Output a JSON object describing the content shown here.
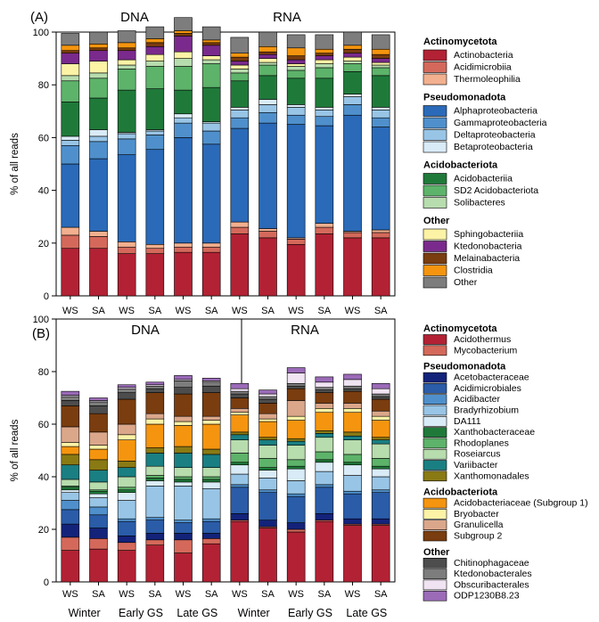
{
  "chart_data": [
    {
      "type": "bar",
      "stacked": true,
      "panel_label": "(A)",
      "ylabel": "% of all reads",
      "ylim": [
        0,
        100
      ],
      "yticks": [
        0,
        20,
        40,
        60,
        80,
        100
      ],
      "grid": false,
      "categories": [
        "WS",
        "SA",
        "WS",
        "SA",
        "WS",
        "SA",
        "WS",
        "SA",
        "WS",
        "SA",
        "WS",
        "SA"
      ],
      "group_labels": [
        "DNA",
        "RNA"
      ],
      "legend": [
        {
          "heading": "Actinomycetota",
          "items": [
            {
              "name": "Actinobacteria",
              "color": "#b22234"
            },
            {
              "name": "Acidimicrobiia",
              "color": "#d4695b"
            },
            {
              "name": "Thermoleophilia",
              "color": "#f2b08f"
            }
          ]
        },
        {
          "heading": "Pseudomonadota",
          "items": [
            {
              "name": "Alphaproteobacteria",
              "color": "#2a6ab8"
            },
            {
              "name": "Gammaproteobacteria",
              "color": "#4f90cc"
            },
            {
              "name": "Deltaproteobacteria",
              "color": "#98c5e6"
            },
            {
              "name": "Betaproteobacteria",
              "color": "#d9ebf6"
            }
          ]
        },
        {
          "heading": "Acidobacteriota",
          "items": [
            {
              "name": "Acidobacteriia",
              "color": "#1f7a3a"
            },
            {
              "name": "SD2 Acidobacteriota",
              "color": "#5db36a"
            },
            {
              "name": "Solibacteres",
              "color": "#b7dcad"
            }
          ]
        },
        {
          "heading": "Other",
          "items": [
            {
              "name": "Sphingobacteriia",
              "color": "#fdf3a6"
            },
            {
              "name": "Ktedonobacteria",
              "color": "#7a2a8c"
            },
            {
              "name": "Melainabacteria",
              "color": "#7a3d0f"
            },
            {
              "name": "Clostridia",
              "color": "#f5950f"
            },
            {
              "name": "Other",
              "color": "#7d7d7d"
            }
          ]
        }
      ],
      "series": [
        {
          "name": "Actinobacteria",
          "values": [
            18,
            18,
            16,
            16,
            16.5,
            16.5,
            23.5,
            22,
            19.5,
            23.5,
            22,
            22
          ]
        },
        {
          "name": "Acidimicrobiia",
          "values": [
            5,
            4.5,
            2.5,
            2,
            2,
            2,
            2.5,
            2.5,
            2,
            2.5,
            2,
            2
          ]
        },
        {
          "name": "Thermoleophilia",
          "values": [
            3,
            2,
            2,
            1.5,
            1.5,
            1.5,
            2,
            1,
            0.5,
            1.5,
            0.5,
            1
          ]
        },
        {
          "name": "Alphaproteobacteria",
          "values": [
            24,
            27.5,
            33,
            36,
            40,
            37.5,
            35.5,
            40,
            43,
            37,
            44,
            39
          ]
        },
        {
          "name": "Gammaproteobacteria",
          "values": [
            7,
            6.5,
            6,
            5.5,
            5.5,
            5,
            4,
            4,
            3.5,
            3.5,
            4,
            3.5
          ]
        },
        {
          "name": "Deltaproteobacteria",
          "values": [
            2,
            2,
            2,
            1.5,
            2,
            3,
            3,
            3,
            3,
            2.5,
            3,
            3
          ]
        },
        {
          "name": "Betaproteobacteria",
          "values": [
            1.5,
            2.5,
            0.5,
            0.5,
            1.5,
            0.5,
            1,
            2,
            1,
            1,
            1,
            1
          ]
        },
        {
          "name": "Acidobacteriia",
          "values": [
            13,
            12,
            16,
            15.5,
            9,
            13,
            10,
            9,
            10,
            11,
            8.5,
            12
          ]
        },
        {
          "name": "SD2 Acidobacteriota",
          "values": [
            8,
            7.5,
            8,
            8.5,
            9,
            9,
            3,
            4,
            3,
            4,
            3,
            3
          ]
        },
        {
          "name": "Solibacteres",
          "values": [
            2,
            2,
            1.5,
            2,
            3,
            1.5,
            1.5,
            1,
            1.5,
            1.5,
            1,
            1
          ]
        },
        {
          "name": "Sphingobacteriia",
          "values": [
            4.5,
            4.5,
            2,
            2.5,
            2.5,
            1.5,
            1.5,
            1.5,
            1,
            1.5,
            1.5,
            1
          ]
        },
        {
          "name": "Ktedonobacteria",
          "values": [
            4,
            4,
            3.5,
            3,
            6,
            4,
            1.5,
            1.5,
            1.5,
            1.5,
            1.5,
            1.5
          ]
        },
        {
          "name": "Melainabacteria",
          "values": [
            1,
            1,
            1,
            1.5,
            1,
            1,
            1.5,
            1,
            1.5,
            1,
            1.5,
            1.5
          ]
        },
        {
          "name": "Clostridia",
          "values": [
            2,
            1.5,
            2,
            1.5,
            1,
            1,
            1.5,
            2,
            3,
            1.5,
            1.5,
            2
          ]
        },
        {
          "name": "Other",
          "values": [
            4.5,
            4.5,
            4.5,
            4.5,
            5,
            5,
            6,
            5.5,
            5,
            5.5,
            5,
            5.5
          ]
        }
      ]
    },
    {
      "type": "bar",
      "stacked": true,
      "panel_label": "(B)",
      "ylabel": "% of all reads",
      "ylim": [
        0,
        100
      ],
      "yticks": [
        0,
        20,
        40,
        60,
        80,
        100
      ],
      "grid": false,
      "categories": [
        "WS",
        "SA",
        "WS",
        "SA",
        "WS",
        "SA",
        "WS",
        "SA",
        "WS",
        "SA",
        "WS",
        "SA"
      ],
      "group_labels": [
        "DNA",
        "RNA"
      ],
      "season_labels": [
        "Winter",
        "Early GS",
        "Late GS",
        "Winter",
        "Early GS",
        "Late GS"
      ],
      "legend": [
        {
          "heading": "Actinomycetota",
          "items": [
            {
              "name": "Acidothermus",
              "color": "#b22234"
            },
            {
              "name": "Mycobacterium",
              "color": "#d4695b"
            }
          ]
        },
        {
          "heading": "Pseudomonadota",
          "items": [
            {
              "name": "Acetobacteraceae",
              "color": "#13237a"
            },
            {
              "name": "Acidimicrobiales",
              "color": "#2a5ca8"
            },
            {
              "name": "Acidibacter",
              "color": "#4f90cc"
            },
            {
              "name": "Bradyrhizobium",
              "color": "#98c5e6"
            },
            {
              "name": "DA111",
              "color": "#d9ebf6"
            },
            {
              "name": "Xanthobacteraceae",
              "color": "#1f7a3a"
            },
            {
              "name": "Rhodoplanes",
              "color": "#5db36a"
            },
            {
              "name": "Roseiarcus",
              "color": "#b7dcad"
            },
            {
              "name": "Variibacter",
              "color": "#1a7f82"
            },
            {
              "name": "Xanthomonadales",
              "color": "#8a7a14"
            }
          ]
        },
        {
          "heading": "Acidobacteriota",
          "items": [
            {
              "name": "Acidobacteriaceae (Subgroup 1)",
              "color": "#f5950f"
            },
            {
              "name": "Bryobacter",
              "color": "#fdf3a6"
            },
            {
              "name": "Granulicella",
              "color": "#dba78b"
            },
            {
              "name": "Subgroup 2",
              "color": "#7a3d0f"
            }
          ]
        },
        {
          "heading": "Other",
          "items": [
            {
              "name": "Chitinophagaceae",
              "color": "#4d4d4d"
            },
            {
              "name": "Ktedonobacterales",
              "color": "#7d7d7d"
            },
            {
              "name": "Obscuribacterales",
              "color": "#f0e4f2"
            },
            {
              "name": "ODP1230B8.23",
              "color": "#9b6bb8"
            }
          ]
        }
      ],
      "series": [
        {
          "name": "Acidothermus",
          "values": [
            12,
            12.5,
            12,
            14,
            11,
            14.5,
            23,
            20.5,
            19,
            23,
            21.5,
            21.5
          ]
        },
        {
          "name": "Mycobacterium",
          "values": [
            5,
            4,
            3,
            2,
            5,
            2,
            0.5,
            0.5,
            1,
            0.5,
            0.5,
            0.5
          ]
        },
        {
          "name": "Acetobacteraceae",
          "values": [
            5,
            4,
            2.5,
            2.5,
            2.5,
            2,
            2.5,
            2.5,
            2.5,
            2.5,
            2,
            2
          ]
        },
        {
          "name": "Acidimicrobiales",
          "values": [
            5.5,
            5,
            5.5,
            5,
            4,
            4.5,
            10,
            10.5,
            10,
            10,
            9.5,
            10
          ]
        },
        {
          "name": "Acidibacter",
          "values": [
            3.5,
            3,
            1,
            1,
            1,
            1,
            1,
            1,
            1,
            1,
            1,
            1
          ]
        },
        {
          "name": "Bradyrhizobium",
          "values": [
            3,
            3.5,
            7,
            12,
            13,
            11.5,
            4,
            4.5,
            5,
            5,
            6,
            5
          ]
        },
        {
          "name": "DA111",
          "values": [
            1,
            1.5,
            3,
            2,
            1.5,
            2.5,
            3.5,
            3,
            4.5,
            3.5,
            4,
            3
          ]
        },
        {
          "name": "Xanthobacteraceae",
          "values": [
            1,
            1,
            1,
            1,
            1,
            1,
            1,
            1,
            1,
            1,
            1,
            1
          ]
        },
        {
          "name": "Rhodoplanes",
          "values": [
            0.5,
            0.5,
            1,
            1,
            1,
            1,
            3.5,
            3.5,
            2.5,
            3,
            3,
            3
          ]
        },
        {
          "name": "Roseiarcus",
          "values": [
            2.5,
            3,
            4,
            3.5,
            3.5,
            3.5,
            5,
            5,
            5.5,
            5.5,
            5.5,
            5.5
          ]
        },
        {
          "name": "Variibacter",
          "values": [
            5.5,
            4.5,
            3.5,
            5,
            5.5,
            5,
            2,
            2,
            1.5,
            1.5,
            1.5,
            1.5
          ]
        },
        {
          "name": "Xanthomonadales",
          "values": [
            4,
            4,
            2.5,
            2,
            2.5,
            2,
            1,
            1,
            1,
            1,
            1.5,
            1
          ]
        },
        {
          "name": "Acidobacteriaceae (Subgroup 1)",
          "values": [
            3,
            4,
            8,
            9,
            8,
            9.5,
            6.5,
            6,
            7,
            7,
            7.5,
            6.5
          ]
        },
        {
          "name": "Bryobacter",
          "values": [
            1.5,
            1.5,
            2,
            2,
            1.5,
            1.5,
            1,
            1,
            1.5,
            1.5,
            1.5,
            1.5
          ]
        },
        {
          "name": "Granulicella",
          "values": [
            6,
            5,
            4,
            2,
            2,
            1.5,
            1.5,
            2,
            6,
            2,
            2,
            2
          ]
        },
        {
          "name": "Subgroup 2",
          "values": [
            8,
            7,
            9.5,
            8,
            8.5,
            9,
            4,
            4,
            4.5,
            4,
            4.5,
            4.5
          ]
        },
        {
          "name": "Chitinophagaceae",
          "values": [
            2,
            3,
            2.5,
            1.5,
            2.5,
            2.5,
            1.5,
            1.5,
            1,
            1,
            1,
            1
          ]
        },
        {
          "name": "Ktedonobacterales",
          "values": [
            1.5,
            1.5,
            1.5,
            1,
            2.5,
            1.5,
            1,
            1,
            1,
            1,
            1,
            1
          ]
        },
        {
          "name": "Obscuribacterales",
          "values": [
            0.5,
            0.5,
            0.5,
            0.5,
            0.5,
            0.5,
            1,
            1,
            4,
            2,
            2.5,
            2
          ]
        },
        {
          "name": "ODP1230B8.23",
          "values": [
            1.5,
            1,
            1,
            1,
            1.5,
            1,
            2,
            1.5,
            2,
            2,
            2,
            2
          ]
        }
      ]
    }
  ]
}
